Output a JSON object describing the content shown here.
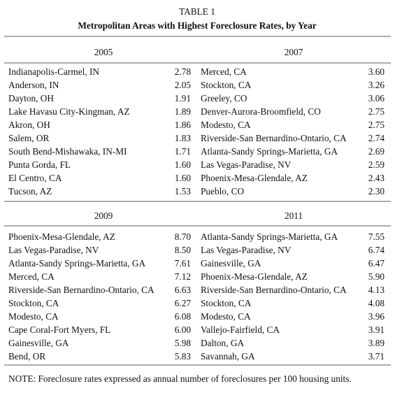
{
  "title": "TABLE 1",
  "subtitle": "Metropolitan Areas with Highest Foreclosure Rates, by Year",
  "panels": [
    {
      "year": "2005",
      "rows": [
        [
          "Indianapolis-Carmel, IN",
          "2.78"
        ],
        [
          "Anderson, IN",
          "2.05"
        ],
        [
          "Dayton, OH",
          "1.91"
        ],
        [
          "Lake Havasu City-Kingman, AZ",
          "1.89"
        ],
        [
          "Akron, OH",
          "1.86"
        ],
        [
          "Salem, OR",
          "1.83"
        ],
        [
          "South Bend-Mishawaka, IN-MI",
          "1.71"
        ],
        [
          "Punta Gorda, FL",
          "1.60"
        ],
        [
          "El Centro, CA",
          "1.60"
        ],
        [
          "Tucson, AZ",
          "1.53"
        ]
      ]
    },
    {
      "year": "2007",
      "rows": [
        [
          "Merced, CA",
          "3.60"
        ],
        [
          "Stockton, CA",
          "3.26"
        ],
        [
          "Greeley, CO",
          "3.06"
        ],
        [
          "Denver-Aurora-Broomfield, CO",
          "2.75"
        ],
        [
          "Modesto, CA",
          "2.75"
        ],
        [
          "Riverside-San Bernardino-Ontario, CA",
          "2.74"
        ],
        [
          "Atlanta-Sandy Springs-Marietta, GA",
          "2.69"
        ],
        [
          "Las Vegas-Paradise, NV",
          "2.59"
        ],
        [
          "Phoenix-Mesa-Glendale, AZ",
          "2.43"
        ],
        [
          "Pueblo, CO",
          "2.30"
        ]
      ]
    },
    {
      "year": "2009",
      "rows": [
        [
          "Phoenix-Mesa-Glendale, AZ",
          "8.70"
        ],
        [
          "Las Vegas-Paradise, NV",
          "8.50"
        ],
        [
          "Atlanta-Sandy Springs-Marietta, GA",
          "7.61"
        ],
        [
          "Merced, CA",
          "7.12"
        ],
        [
          "Riverside-San Bernardino-Ontario, CA",
          "6.63"
        ],
        [
          "Stockton, CA",
          "6.27"
        ],
        [
          "Modesto, CA",
          "6.08"
        ],
        [
          "Cape Coral-Fort Myers, FL",
          "6.00"
        ],
        [
          "Gainesville, GA",
          "5.98"
        ],
        [
          "Bend, OR",
          "5.83"
        ]
      ]
    },
    {
      "year": "2011",
      "rows": [
        [
          "Atlanta-Sandy Springs-Marietta, GA",
          "7.55"
        ],
        [
          "Las Vegas-Paradise, NV",
          "6.74"
        ],
        [
          "Gainesville, GA",
          "6.47"
        ],
        [
          "Phoenix-Mesa-Glendale, AZ",
          "5.90"
        ],
        [
          "Riverside-San Bernardino-Ontario, CA",
          "4.13"
        ],
        [
          "Stockton, CA",
          "4.08"
        ],
        [
          "Modesto, CA",
          "3.96"
        ],
        [
          "Vallejo-Fairfield, CA",
          "3.91"
        ],
        [
          "Dalton, GA",
          "3.89"
        ],
        [
          "Savannah, GA",
          "3.71"
        ]
      ]
    }
  ],
  "note": "NOTE: Foreclosure rates expressed as annual number of foreclosures per 100 housing units."
}
